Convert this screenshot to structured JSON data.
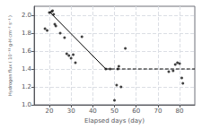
{
  "chart_data": {
    "type": "scatter",
    "xlabel": "Elapsed days (day)",
    "ylabel": "Hydrogen flux ( 10⁻¹¹ g-H cm⁻² s⁻¹ )",
    "xlim": [
      13,
      87
    ],
    "ylim": [
      1.0,
      2.1
    ],
    "xticks": [
      20,
      30,
      40,
      50,
      60,
      70,
      80
    ],
    "yticks": [
      {
        "value": 1.0,
        "label": "1.0"
      },
      1.2,
      1.4,
      1.6,
      1.8,
      {
        "value": 2.0,
        "label": "2.0"
      }
    ],
    "grid": true,
    "series": [
      {
        "type": "scatter",
        "color": "#111111",
        "x": [
          18,
          19,
          20,
          21,
          21.5,
          22,
          22.5,
          23,
          25,
          27,
          28,
          29,
          30,
          31,
          32,
          35,
          46,
          48,
          50,
          51,
          51.5,
          52,
          53,
          55,
          75,
          77,
          78,
          79,
          80,
          81,
          81.5
        ],
        "values": [
          1.85,
          1.83,
          2.03,
          2.04,
          2.05,
          2.01,
          1.9,
          1.88,
          1.8,
          1.75,
          1.57,
          1.55,
          1.52,
          1.56,
          1.47,
          1.76,
          1.4,
          1.4,
          1.05,
          1.22,
          1.4,
          1.43,
          1.2,
          1.63,
          1.37,
          1.38,
          1.45,
          1.47,
          1.46,
          1.3,
          1.24
        ]
      },
      {
        "type": "line",
        "color": "#000000",
        "line_style": "solid",
        "x": [
          20,
          46
        ],
        "values": [
          2.04,
          1.4
        ]
      },
      {
        "type": "line",
        "color": "#000000",
        "line_style": "dashed",
        "x": [
          46,
          87
        ],
        "values": [
          1.4,
          1.4
        ]
      }
    ]
  }
}
